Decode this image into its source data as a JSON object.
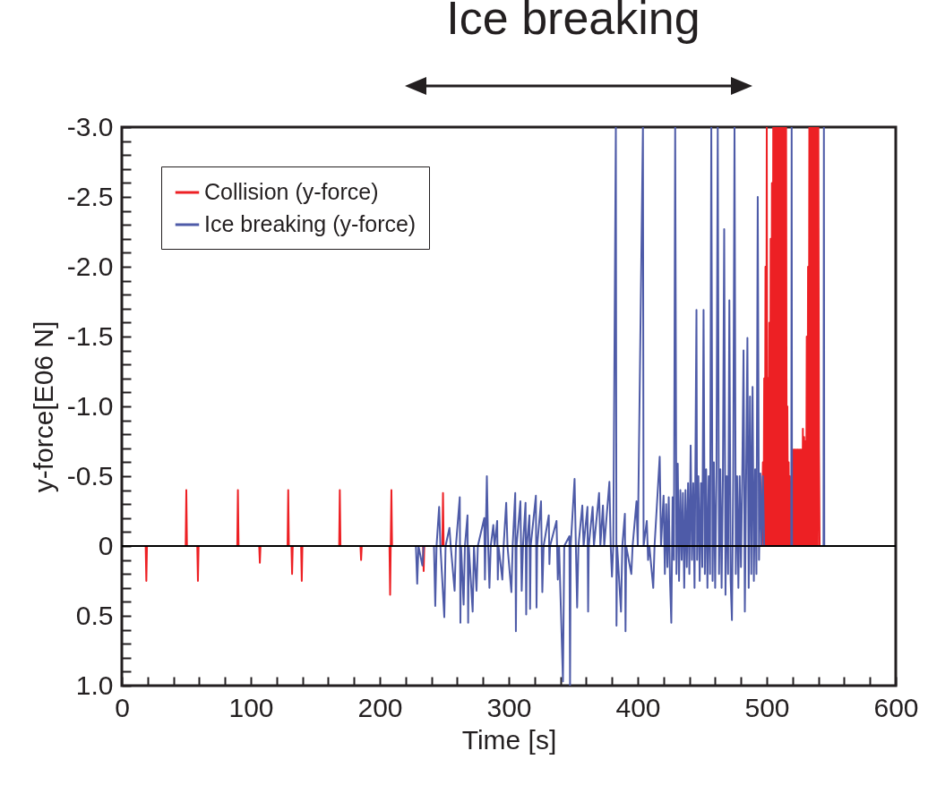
{
  "chart_data": {
    "type": "line",
    "title": "Ice breaking",
    "xlabel": "Time [s]",
    "ylabel": "y-force[E06 N]",
    "xlim": [
      0,
      600
    ],
    "ylim": [
      1.0,
      -3.0
    ],
    "xticks": [
      0,
      {
        "value": 20,
        "label": null
      },
      {
        "value": 40,
        "label": null
      },
      {
        "value": 60,
        "label": null
      },
      {
        "value": 80,
        "label": null
      },
      100,
      {
        "value": 120,
        "label": null
      },
      {
        "value": 140,
        "label": null
      },
      {
        "value": 160,
        "label": null
      },
      {
        "value": 180,
        "label": null
      },
      200,
      {
        "value": 220,
        "label": null
      },
      {
        "value": 240,
        "label": null
      },
      {
        "value": 260,
        "label": null
      },
      {
        "value": 280,
        "label": null
      },
      300,
      {
        "value": 320,
        "label": null
      },
      {
        "value": 340,
        "label": null
      },
      {
        "value": 360,
        "label": null
      },
      {
        "value": 380,
        "label": null
      },
      400,
      {
        "value": 420,
        "label": null
      },
      {
        "value": 440,
        "label": null
      },
      {
        "value": 460,
        "label": null
      },
      {
        "value": 480,
        "label": null
      },
      500,
      {
        "value": 520,
        "label": null
      },
      {
        "value": 540,
        "label": null
      },
      {
        "value": 560,
        "label": null
      },
      {
        "value": 580,
        "label": null
      },
      600
    ],
    "yticks": [
      {
        "value": -3,
        "label": "-3.0"
      },
      {
        "value": -2.9,
        "label": null
      },
      {
        "value": -2.8,
        "label": null
      },
      {
        "value": -2.7,
        "label": null
      },
      {
        "value": -2.6,
        "label": null
      },
      -2.5,
      {
        "value": -2.4,
        "label": null
      },
      {
        "value": -2.3,
        "label": null
      },
      {
        "value": -2.2,
        "label": null
      },
      {
        "value": -2.1,
        "label": null
      },
      {
        "value": -2,
        "label": "-2.0"
      },
      {
        "value": -1.9,
        "label": null
      },
      {
        "value": -1.8,
        "label": null
      },
      {
        "value": -1.7,
        "label": null
      },
      {
        "value": -1.6,
        "label": null
      },
      -1.5,
      {
        "value": -1.4,
        "label": null
      },
      {
        "value": -1.3,
        "label": null
      },
      {
        "value": -1.2,
        "label": null
      },
      {
        "value": -1.1,
        "label": null
      },
      {
        "value": -1,
        "label": "-1.0"
      },
      {
        "value": -0.9,
        "label": null
      },
      {
        "value": -0.8,
        "label": null
      },
      {
        "value": -0.7,
        "label": null
      },
      {
        "value": -0.6,
        "label": null
      },
      -0.5,
      {
        "value": -0.4,
        "label": null
      },
      {
        "value": -0.3,
        "label": null
      },
      {
        "value": -0.2,
        "label": null
      },
      {
        "value": -0.1,
        "label": null
      },
      0,
      {
        "value": 0.1,
        "label": null
      },
      {
        "value": 0.2,
        "label": null
      },
      {
        "value": 0.3,
        "label": null
      },
      {
        "value": 0.4,
        "label": null
      },
      0.5,
      {
        "value": 0.6,
        "label": null
      },
      {
        "value": 0.7,
        "label": null
      },
      {
        "value": 0.8,
        "label": null
      },
      {
        "value": 0.9,
        "label": null
      },
      {
        "value": 1,
        "label": "1.0"
      }
    ],
    "grid": false,
    "legend": "top left",
    "ref_lines": [
      {
        "axis": "y",
        "value": 0,
        "color": "#000000"
      }
    ],
    "series": [
      {
        "name": "Collision (y-force)",
        "color": "#ed2024",
        "x": [
          15,
          18.5,
          19,
          19.5,
          49.5,
          50,
          50.5,
          58.5,
          59,
          59.5,
          89.5,
          90,
          90.5,
          106.5,
          107,
          107.5,
          128.5,
          129,
          129.5,
          131.5,
          132,
          132.5,
          139,
          139.5,
          140,
          168.5,
          169,
          169.5,
          185,
          185.5,
          186,
          207.5,
          208,
          209,
          209.5,
          233.5,
          234,
          234.5,
          248.5,
          249,
          249.5,
          496,
          497,
          497.5,
          498,
          498.5,
          499,
          499.5,
          500,
          500.5,
          501,
          501.5,
          502,
          502.5,
          503,
          503.5,
          504,
          504.5,
          505,
          505.5,
          506,
          506.5,
          507,
          507.5,
          508,
          508.5,
          509,
          509.5,
          510,
          510.5,
          511,
          511.5,
          512,
          512.5,
          513,
          513.5,
          514,
          514.5,
          515,
          515.5,
          516,
          516.5,
          517,
          517.5,
          518,
          518.5,
          520,
          520.5,
          521,
          521.5,
          522,
          522.5,
          523,
          523.5,
          524,
          524.5,
          525,
          525.5,
          526,
          526.5,
          527,
          527.5,
          528,
          528.5,
          529,
          529.5,
          530,
          530.5,
          531,
          531.5,
          532,
          532.5,
          533,
          533.5,
          534,
          534.5,
          535,
          535.5,
          536,
          536.5,
          537,
          537.5,
          538,
          538.5,
          539,
          539.5,
          540,
          540.5,
          541
        ],
        "values": [
          0,
          0,
          0.25,
          0,
          0,
          -0.4,
          0,
          0,
          0.25,
          0,
          0,
          -0.4,
          0,
          0,
          0.12,
          0,
          0,
          -0.4,
          0,
          0,
          0.2,
          0,
          0,
          0.25,
          0,
          0,
          -0.4,
          0,
          0,
          0.1,
          0,
          0,
          0.35,
          -0.4,
          0,
          0,
          0.18,
          0,
          0,
          -0.38,
          0,
          0,
          -0.6,
          0,
          -1.2,
          0,
          -2.0,
          0,
          -3.0,
          0,
          -1.2,
          0,
          -1.6,
          0,
          -2.2,
          0,
          -2.6,
          0,
          -3.0,
          0,
          -3.0,
          0,
          -3.0,
          0,
          -3.0,
          0,
          -3.0,
          0,
          -3.0,
          0,
          -3.0,
          0,
          -3.0,
          0,
          -3.0,
          0,
          -3.0,
          0,
          -3.0,
          0,
          -1.0,
          0,
          -0.6,
          0,
          -0.5,
          0,
          -0.69,
          0,
          -0.69,
          0,
          -0.69,
          0,
          -0.69,
          0,
          -0.69,
          0,
          -0.69,
          0,
          -0.69,
          0,
          -0.69,
          0,
          -0.84,
          0,
          -0.78,
          0,
          -0.75,
          0,
          -1.5,
          0,
          -2.0,
          0,
          -3.0,
          0,
          -3.0,
          0,
          -3.0,
          0,
          -3.0,
          0,
          -3.0,
          0,
          -3.0,
          0,
          -3.0,
          0,
          -3.0,
          -0.7,
          0
        ]
      },
      {
        "name": "Ice breaking (y-force)",
        "color": "#4e5ba8",
        "x": [
          228,
          229,
          230,
          233,
          234,
          242,
          243,
          244,
          246,
          247,
          250,
          251,
          254,
          255,
          258,
          259,
          262,
          262.5,
          263,
          265,
          266,
          268,
          268.5,
          269,
          272,
          273,
          275,
          276,
          281,
          281.5,
          282,
          283,
          284,
          285,
          286,
          288,
          289,
          291,
          291.5,
          292,
          295,
          296,
          298,
          299,
          302,
          303,
          305,
          305.5,
          306,
          309,
          310,
          311,
          313,
          313.5,
          314,
          316,
          316.5,
          317,
          321,
          321.5,
          322,
          325,
          326,
          327,
          331,
          331.5,
          332,
          337,
          338,
          339,
          342,
          343,
          347,
          347.5,
          348,
          351,
          352,
          353,
          354,
          357,
          358,
          361,
          361.5,
          362,
          365,
          366,
          370,
          371,
          373,
          374,
          378,
          379,
          380,
          381,
          383,
          383.5,
          384,
          387,
          388,
          390,
          390.5,
          391,
          395,
          396,
          399,
          400,
          404,
          404.5,
          407,
          408,
          409,
          412,
          413,
          417,
          418,
          420,
          421,
          422,
          423,
          424,
          425,
          426,
          427,
          428,
          429,
          430,
          431,
          432,
          433,
          434,
          435,
          436,
          437,
          438,
          439,
          440,
          441,
          442,
          443,
          444,
          445.5,
          446,
          447,
          448,
          449,
          450,
          451,
          452,
          453,
          454,
          455,
          456,
          457,
          458,
          459,
          460,
          461,
          462,
          463,
          464,
          465,
          466,
          467,
          468,
          469,
          470,
          471,
          472,
          473,
          474,
          475,
          476,
          477,
          478,
          479,
          480,
          481,
          482,
          483,
          484,
          485,
          486,
          487,
          488,
          489,
          490,
          491,
          492,
          493,
          494,
          495,
          496,
          497,
          498,
          519,
          519.3,
          519.6,
          544,
          544.3,
          544.6
        ],
        "values": [
          0,
          0.27,
          0,
          0.14,
          0,
          0,
          0.43,
          0,
          -0.28,
          0,
          0.51,
          0,
          -0.13,
          0,
          0.32,
          0,
          -0.35,
          0.55,
          0,
          0.42,
          0,
          -0.22,
          0.55,
          0,
          0.47,
          0,
          0.32,
          0,
          -0.2,
          0.24,
          0,
          -0.5,
          0,
          0.3,
          0,
          -0.15,
          0,
          -0.18,
          0.24,
          0,
          0.24,
          0,
          -0.31,
          0,
          0.33,
          0,
          -0.38,
          0.61,
          0,
          -0.32,
          0.32,
          0,
          -0.31,
          0.49,
          0,
          -0.22,
          0.45,
          0,
          -0.36,
          0.44,
          0,
          -0.32,
          0.33,
          0,
          -0.22,
          0.13,
          0,
          -0.18,
          0.24,
          0,
          0.97,
          0,
          -0.07,
          1.0,
          0,
          -0.48,
          0,
          0.44,
          0,
          -0.29,
          0,
          -0.28,
          0.47,
          0,
          -0.28,
          0,
          -0.38,
          0,
          -0.29,
          0,
          -0.46,
          0,
          0.22,
          0,
          -3.0,
          0.57,
          0,
          0.47,
          0,
          -0.23,
          0.61,
          0,
          0.2,
          0,
          -0.32,
          0,
          -3.0,
          0,
          -0.18,
          0.1,
          0,
          0.3,
          0,
          -0.64,
          0,
          -0.36,
          0.2,
          -0.3,
          0.15,
          -0.35,
          0.25,
          0.55,
          -0.35,
          0.1,
          -3.0,
          0.2,
          -0.59,
          0.25,
          -0.4,
          0.1,
          -0.38,
          0.3,
          -0.4,
          0.15,
          -0.45,
          0.2,
          -0.72,
          0.1,
          -0.45,
          0.3,
          -1.69,
          0.1,
          -0.5,
          0.25,
          -0.45,
          0.15,
          -1.69,
          0.2,
          -0.55,
          0.3,
          -0.5,
          0.2,
          -3.0,
          0.25,
          -0.6,
          0.3,
          -0.5,
          -3.0,
          0.2,
          -0.55,
          0.3,
          -0.5,
          -2.27,
          0.35,
          -0.5,
          0.2,
          -1.76,
          0.25,
          0.53,
          -0.5,
          -3.0,
          0.2,
          -0.5,
          0.3,
          -0.5,
          0.15,
          -0.5,
          -1.4,
          0.47,
          -0.5,
          -1.49,
          0.3,
          -1.07,
          0.2,
          -1.14,
          0.25,
          -0.55,
          0.2,
          -2.5,
          0.1,
          -0.52,
          0,
          -0.5,
          0,
          0,
          -3.0,
          0,
          0,
          -3.0,
          0
        ]
      }
    ]
  }
}
